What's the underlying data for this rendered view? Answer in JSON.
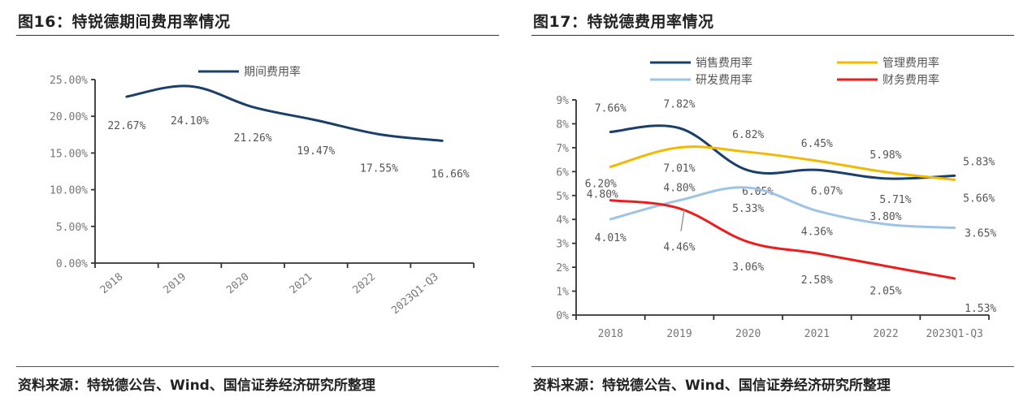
{
  "left": {
    "title": "图16：特锐德期间费用率情况",
    "source": "资料来源：特锐德公告、Wind、国信证券经济研究所整理"
  },
  "right": {
    "title": "图17：特锐德费用率情况",
    "source": "资料来源：特锐德公告、Wind、国信证券经济研究所整理"
  },
  "chart_data": [
    {
      "type": "line",
      "title": "图16：特锐德期间费用率情况",
      "categories": [
        "2018",
        "2019",
        "2020",
        "2021",
        "2022",
        "2023Q1-Q3"
      ],
      "series": [
        {
          "name": "期间费用率",
          "color": "#1a3f6b",
          "values": [
            22.67,
            24.1,
            21.26,
            19.47,
            17.55,
            16.66
          ],
          "labels": [
            "22.67%",
            "24.10%",
            "21.26%",
            "19.47%",
            "17.55%",
            "16.66%"
          ]
        }
      ],
      "yticks": [
        "0.00%",
        "5.00%",
        "10.00%",
        "15.00%",
        "20.00%",
        "25.00%"
      ],
      "ylim": [
        0,
        25
      ],
      "xlabel": "",
      "ylabel": "",
      "legend": "top-center",
      "grid": false,
      "xtick_rotation": "diagonal"
    },
    {
      "type": "line",
      "title": "图17：特锐德费用率情况",
      "categories": [
        "2018",
        "2019",
        "2020",
        "2021",
        "2022",
        "2023Q1-Q3"
      ],
      "series": [
        {
          "name": "销售费用率",
          "color": "#1a3f6b",
          "values": [
            7.66,
            7.82,
            6.05,
            6.07,
            5.71,
            5.83
          ],
          "labels": [
            "7.66%",
            "7.82%",
            "6.05%",
            "6.07%",
            "5.71%",
            "5.83%"
          ]
        },
        {
          "name": "管理费用率",
          "color": "#f5b800",
          "values": [
            6.2,
            7.01,
            6.82,
            6.45,
            5.98,
            5.66
          ],
          "labels": [
            "6.20%",
            "7.01%",
            "6.82%",
            "6.45%",
            "5.98%",
            "5.66%"
          ]
        },
        {
          "name": "研发费用率",
          "color": "#9dc3e6",
          "values": [
            4.01,
            4.8,
            5.33,
            4.36,
            3.8,
            3.65
          ],
          "labels": [
            "4.01%",
            "4.80%",
            "5.33%",
            "4.36%",
            "3.80%",
            "3.65%"
          ]
        },
        {
          "name": "财务费用率",
          "color": "#ee1c1c",
          "values": [
            4.8,
            4.46,
            3.06,
            2.58,
            2.05,
            1.53
          ],
          "labels": [
            "4.80%",
            "4.46%",
            "3.06%",
            "2.58%",
            "2.05%",
            "1.53%"
          ]
        }
      ],
      "yticks": [
        "0%",
        "1%",
        "2%",
        "3%",
        "4%",
        "5%",
        "6%",
        "7%",
        "8%",
        "9%"
      ],
      "ylim": [
        0,
        9
      ],
      "xlabel": "",
      "ylabel": "",
      "legend": "top-center",
      "grid": false
    }
  ]
}
